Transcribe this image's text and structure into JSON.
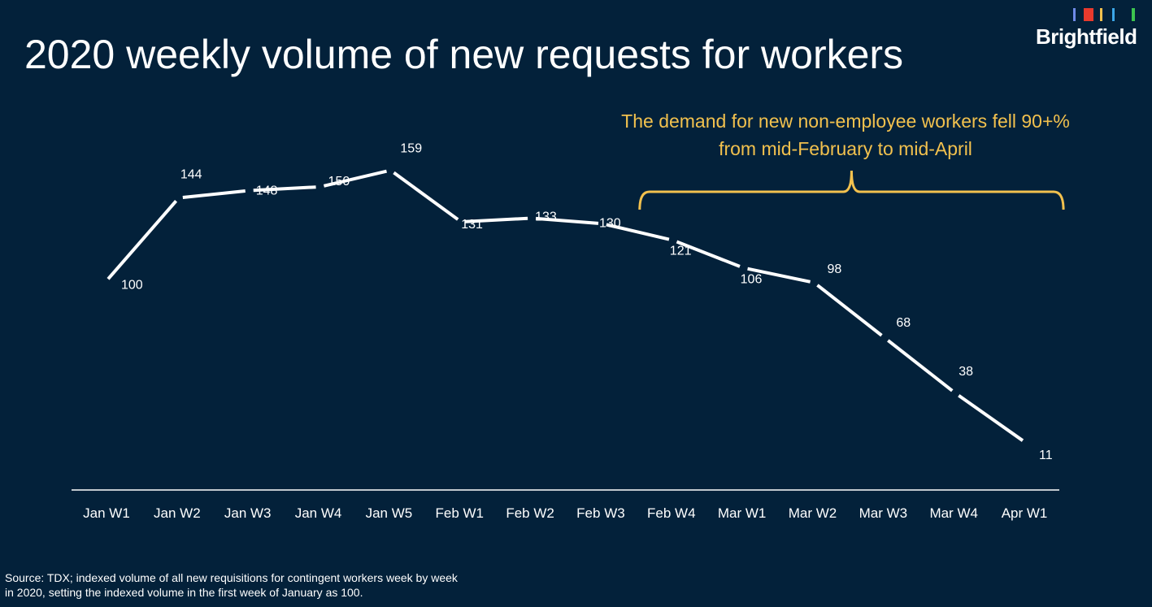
{
  "title": "2020 weekly volume of new requests for workers",
  "logo": {
    "text": "Brightfield",
    "bar_colors": [
      "#6f8be8",
      "#e83a2d",
      "#f2c14e",
      "#3ca7e8",
      "#3cc44f"
    ]
  },
  "annotation": {
    "text": "The demand for new non-employee workers fell 90+% from mid-February to mid-April",
    "color": "#f2c14e"
  },
  "source": "Source:  TDX; indexed volume of all new requisitions for contingent workers week by week in 2020, setting the indexed volume in the first week of January as 100.",
  "chart_data": {
    "type": "line",
    "title": "2020 weekly volume of new requests for workers",
    "categories": [
      "Jan W1",
      "Jan W2",
      "Jan W3",
      "Jan W4",
      "Jan W5",
      "Feb W1",
      "Feb W2",
      "Feb W3",
      "Feb W4",
      "Mar W1",
      "Mar W2",
      "Mar W3",
      "Mar W4",
      "Apr W1"
    ],
    "series": [
      {
        "values": [
          100,
          144,
          148,
          150,
          159,
          131,
          133,
          130,
          121,
          106,
          98,
          68,
          38,
          11
        ],
        "color": "#ffffff"
      }
    ],
    "data_labels": [
      "100",
      "144",
      "148",
      "150",
      "159",
      "131",
      "133",
      "130",
      "121",
      "106",
      "98",
      "68",
      "38",
      "11"
    ],
    "bracket_span": [
      "Feb W4",
      "Apr W1"
    ],
    "grid": false,
    "legend": "none"
  }
}
